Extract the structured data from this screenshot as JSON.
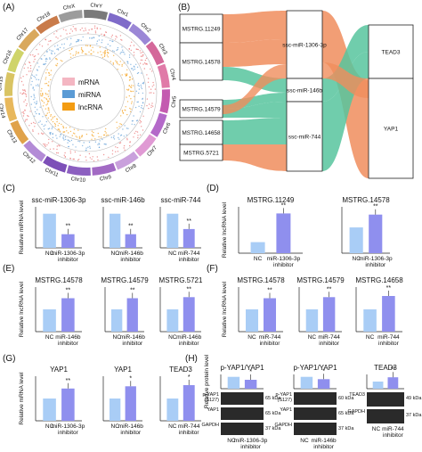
{
  "colors": {
    "bar_light": "#a9cdf6",
    "bar_dark": "#8f8fee",
    "sankey_orange": "#f08d5d",
    "sankey_green": "#57c49e",
    "mrna": "#f4b6c2",
    "mirna": "#5b9bd5",
    "lncrna": "#f39c12"
  },
  "panelA": {
    "label": "(A)",
    "chromosomes": [
      "Chr1",
      "Chr2",
      "Chr3",
      "Chr4",
      "Chr5",
      "Chr6",
      "Chr7",
      "Chr8",
      "Chr9",
      "Chr10",
      "Chr11",
      "Chr12",
      "Chr13",
      "Chr14",
      "Chr15",
      "Chr16",
      "Chr17",
      "Chr18",
      "ChrX",
      "ChrY"
    ],
    "chrom_colors": [
      "#7f6bc9",
      "#9b87d6",
      "#d4689a",
      "#e07aa8",
      "#c45bb0",
      "#b469c9",
      "#e09ad4",
      "#c9a0dc",
      "#a26ac4",
      "#8c5fc0",
      "#7d4fb8",
      "#b38bd6",
      "#e0a24a",
      "#e8b85c",
      "#d9c463",
      "#cfd46a",
      "#d9a85c",
      "#c97b4a",
      "#9c9c9c",
      "#7a7a7a"
    ],
    "legend": [
      {
        "name": "mRNA",
        "color": "#f4b6c2"
      },
      {
        "name": "miRNA",
        "color": "#5b9bd5"
      },
      {
        "name": "lncRNA",
        "color": "#f39c12"
      }
    ]
  },
  "panelB": {
    "label": "(B)",
    "lncrnas": [
      "MSTRG.11249",
      "MSTRG.14578",
      "MSTRG.14579",
      "MSTRG.14658",
      "MSTRG.5721"
    ],
    "mirnas": [
      "ssc-miR-1306-3p",
      "ssc-miR-146b",
      "ssc-miR-744"
    ],
    "mrnas": [
      "TEAD3",
      "YAP1"
    ]
  },
  "chart_data": [
    {
      "id": "C1",
      "type": "bar",
      "title": "ssc-miR-1306-3p",
      "ylabel": "Relative miRNA level",
      "categories": [
        "NC",
        "miR-1306-3p\ninhibitor"
      ],
      "values": [
        1.0,
        0.4
      ],
      "ylim": [
        0,
        1.2
      ],
      "sig": [
        "",
        "**"
      ]
    },
    {
      "id": "C2",
      "type": "bar",
      "title": "ssc-miR-146b",
      "ylabel": "",
      "categories": [
        "NC",
        "miR-146b\ninhibitor"
      ],
      "values": [
        1.0,
        0.4
      ],
      "ylim": [
        0,
        1.2
      ],
      "sig": [
        "",
        "**"
      ]
    },
    {
      "id": "C3",
      "type": "bar",
      "title": "ssc-miR-744",
      "ylabel": "",
      "categories": [
        "NC",
        "miR-744\ninhibitor"
      ],
      "values": [
        1.0,
        0.55
      ],
      "ylim": [
        0,
        1.2
      ],
      "sig": [
        "",
        "**"
      ]
    },
    {
      "id": "D1",
      "type": "bar",
      "title": "MSTRG.11249",
      "ylabel": "Relative lncRNA level",
      "categories": [
        "NC",
        "miR-1306-3p\ninhibitor"
      ],
      "values": [
        1.0,
        3.6
      ],
      "ylim": [
        0,
        4.2
      ],
      "sig": [
        "",
        "**"
      ]
    },
    {
      "id": "D2",
      "type": "bar",
      "title": "MSTRG.14578",
      "ylabel": "",
      "categories": [
        "NC",
        "miR-1306-3p\ninhibitor"
      ],
      "values": [
        1.0,
        1.5
      ],
      "ylim": [
        0,
        1.8
      ],
      "sig": [
        "",
        "**"
      ]
    },
    {
      "id": "E1",
      "type": "bar",
      "title": "MSTRG.14578",
      "ylabel": "Relative lncRNA level",
      "categories": [
        "NC",
        "miR-146b\ninhibitor"
      ],
      "values": [
        1.0,
        1.5
      ],
      "ylim": [
        0,
        2.0
      ],
      "sig": [
        "",
        "**"
      ]
    },
    {
      "id": "E2",
      "type": "bar",
      "title": "MSTRG.14579",
      "ylabel": "",
      "categories": [
        "NC",
        "miR-146b\ninhibitor"
      ],
      "values": [
        1.0,
        1.5
      ],
      "ylim": [
        0,
        2.0
      ],
      "sig": [
        "",
        "**"
      ]
    },
    {
      "id": "E3",
      "type": "bar",
      "title": "MSTRG.5721",
      "ylabel": "",
      "categories": [
        "NC",
        "miR-146b\ninhibitor"
      ],
      "values": [
        1.0,
        1.55
      ],
      "ylim": [
        0,
        2.0
      ],
      "sig": [
        "",
        "**"
      ]
    },
    {
      "id": "F1",
      "type": "bar",
      "title": "MSTRG.14578",
      "ylabel": "Relative lncRNA level",
      "categories": [
        "NC",
        "miR-744\ninhibitor"
      ],
      "values": [
        1.0,
        1.5
      ],
      "ylim": [
        0,
        2.0
      ],
      "sig": [
        "",
        "**"
      ]
    },
    {
      "id": "F2",
      "type": "bar",
      "title": "MSTRG.14579",
      "ylabel": "",
      "categories": [
        "NC",
        "miR-744\ninhibitor"
      ],
      "values": [
        1.0,
        1.55
      ],
      "ylim": [
        0,
        2.0
      ],
      "sig": [
        "",
        "**"
      ]
    },
    {
      "id": "F3",
      "type": "bar",
      "title": "MSTRG.14658",
      "ylabel": "",
      "categories": [
        "NC",
        "miR-744\ninhibitor"
      ],
      "values": [
        1.0,
        1.6
      ],
      "ylim": [
        0,
        2.0
      ],
      "sig": [
        "",
        "**"
      ]
    },
    {
      "id": "G1",
      "type": "bar",
      "title": "YAP1",
      "ylabel": "Relative mRNA level",
      "categories": [
        "NC",
        "miR-1306-3p\ninhibitor"
      ],
      "values": [
        1.0,
        1.45
      ],
      "ylim": [
        0,
        2.0
      ],
      "sig": [
        "",
        "**"
      ]
    },
    {
      "id": "G2",
      "type": "bar",
      "title": "YAP1",
      "ylabel": "",
      "categories": [
        "NC",
        "miR-146b\ninhibitor"
      ],
      "values": [
        1.0,
        1.55
      ],
      "ylim": [
        0,
        2.0
      ],
      "sig": [
        "",
        "*"
      ]
    },
    {
      "id": "G3",
      "type": "bar",
      "title": "TEAD3",
      "ylabel": "",
      "categories": [
        "NC",
        "miR-744\ninhibitor"
      ],
      "values": [
        1.0,
        1.6
      ],
      "ylim": [
        0,
        2.0
      ],
      "sig": [
        "",
        "*"
      ]
    },
    {
      "id": "H1",
      "type": "bar",
      "title": "p-YAP1/YAP1",
      "ylabel": "Relative protein level",
      "categories": [
        "NC",
        "miR-1306-3p\ninhibitor"
      ],
      "values": [
        1.0,
        0.75
      ],
      "ylim": [
        0,
        1.2
      ],
      "sig": [
        "",
        "*"
      ]
    },
    {
      "id": "H2",
      "type": "bar",
      "title": "p-YAP1/YAP1",
      "ylabel": "",
      "categories": [
        "NC",
        "miR-146b\ninhibitor"
      ],
      "values": [
        1.0,
        0.8
      ],
      "ylim": [
        0,
        1.2
      ],
      "sig": [
        "",
        "*"
      ]
    },
    {
      "id": "H3",
      "type": "bar",
      "title": "TEAD3",
      "ylabel": "",
      "categories": [
        "NC",
        "miR-744\ninhibitor"
      ],
      "values": [
        1.0,
        1.6
      ],
      "ylim": [
        0,
        2.0
      ],
      "sig": [
        "",
        "**"
      ]
    }
  ],
  "labels": {
    "C": "(C)",
    "D": "(D)",
    "E": "(E)",
    "F": "(F)",
    "G": "(G)",
    "H": "(H)"
  },
  "blots": {
    "H1": [
      {
        "name": "p-YAP1\n(S127)",
        "kda": "65 kDa"
      },
      {
        "name": "YAP1",
        "kda": "65 kDa"
      },
      {
        "name": "GAPDH",
        "kda": "37 kDa"
      }
    ],
    "H2": [
      {
        "name": "p-YAP1\n(S127)",
        "kda": "60 kDa"
      },
      {
        "name": "YAP1",
        "kda": "65 kDa"
      },
      {
        "name": "GAPDH",
        "kda": "37 kDa"
      }
    ],
    "H3": [
      {
        "name": "TEAD3",
        "kda": "49 kDa"
      },
      {
        "name": "GAPDH",
        "kda": "37 kDa"
      }
    ]
  }
}
